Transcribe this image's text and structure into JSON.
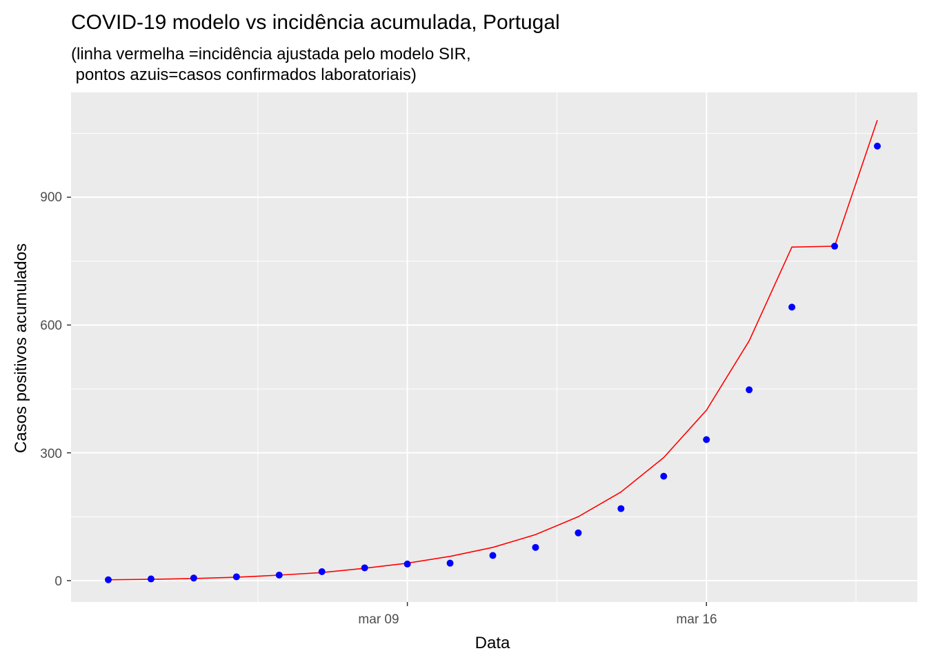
{
  "chart_data": {
    "type": "line",
    "title": "COVID-19 modelo vs incidência acumulada, Portugal",
    "subtitle_lines": [
      "(linha vermelha =incidência ajustada pelo modelo SIR,",
      " pontos azuis=casos confirmados laboratoriais)"
    ],
    "xlabel": "Data",
    "ylabel": "Casos positivos acumulados",
    "x_tick_labels": [
      "mar 09",
      "mar 16"
    ],
    "y_tick_labels": [
      "0",
      "300",
      "600",
      "900"
    ],
    "y_ticks": [
      0,
      300,
      600,
      900
    ],
    "ylim": [
      -54,
      1135
    ],
    "xlim": [
      "2020-03-02",
      "2020-03-20"
    ],
    "x_dates": [
      "2020-03-02",
      "2020-03-03",
      "2020-03-04",
      "2020-03-05",
      "2020-03-06",
      "2020-03-07",
      "2020-03-08",
      "2020-03-09",
      "2020-03-10",
      "2020-03-11",
      "2020-03-12",
      "2020-03-13",
      "2020-03-14",
      "2020-03-15",
      "2020-03-16",
      "2020-03-17",
      "2020-03-18"
    ],
    "series": [
      {
        "kind": "points",
        "color": "#0000ff",
        "values": [
          2,
          4,
          6,
          9,
          13,
          21,
          30,
          39,
          41,
          59,
          78,
          112,
          169,
          245,
          331,
          448,
          642
        ]
      },
      {
        "kind": "line",
        "color": "#ff0000",
        "values": [
          2,
          3,
          5,
          8,
          13,
          19,
          29,
          41,
          57,
          78,
          108,
          150,
          208,
          289,
          400,
          563,
          783
        ]
      }
    ],
    "extra_points_dates": [
      "2020-03-19",
      "2020-03-20"
    ],
    "extra_points_values": [
      785,
      1020
    ],
    "extra_line_dates": [
      "2020-03-19",
      "2020-03-20"
    ],
    "extra_line_values": [
      785,
      1081
    ],
    "grid": true
  }
}
